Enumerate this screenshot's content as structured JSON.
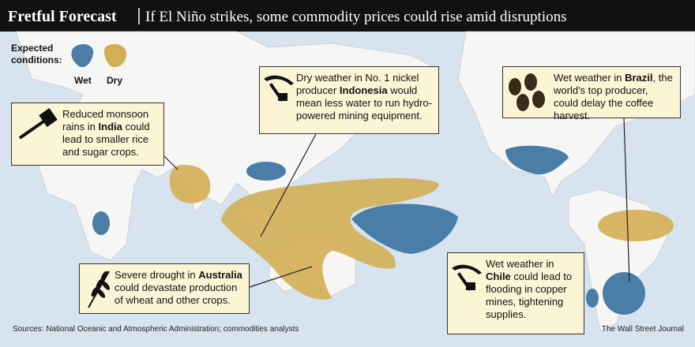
{
  "header": {
    "title": "Fretful Forecast",
    "subtitle": "If El Niño strikes, some commodity prices could rise amid disruptions"
  },
  "legend": {
    "title_lines": [
      "Expected",
      "conditions:"
    ],
    "wet": "Wet",
    "dry": "Dry"
  },
  "callouts": [
    {
      "before": "Reduced monsoon rains in ",
      "bold": "India",
      "after": " could lead to smaller rice and sugar crops."
    },
    {
      "before": "Dry weather in No. 1 nickel producer ",
      "bold": "Indonesia",
      "after": " would mean less water to run hydro-powered mining equipment."
    },
    {
      "before": "Wet weather in ",
      "bold": "Brazil",
      "after": ", the world's top producer, could delay the coffee harvest."
    },
    {
      "before": "Severe drought in ",
      "bold": "Australia",
      "after": " could devastate production of wheat and other crops."
    },
    {
      "before": "Wet weather in ",
      "bold": "Chile",
      "after": " could lead to flooding in copper mines, tightening supplies."
    }
  ],
  "footer": {
    "sources": "Sources: National Oceanic and Atmospheric Administration; commodities analysts",
    "credit": "The Wall Street Journal"
  }
}
